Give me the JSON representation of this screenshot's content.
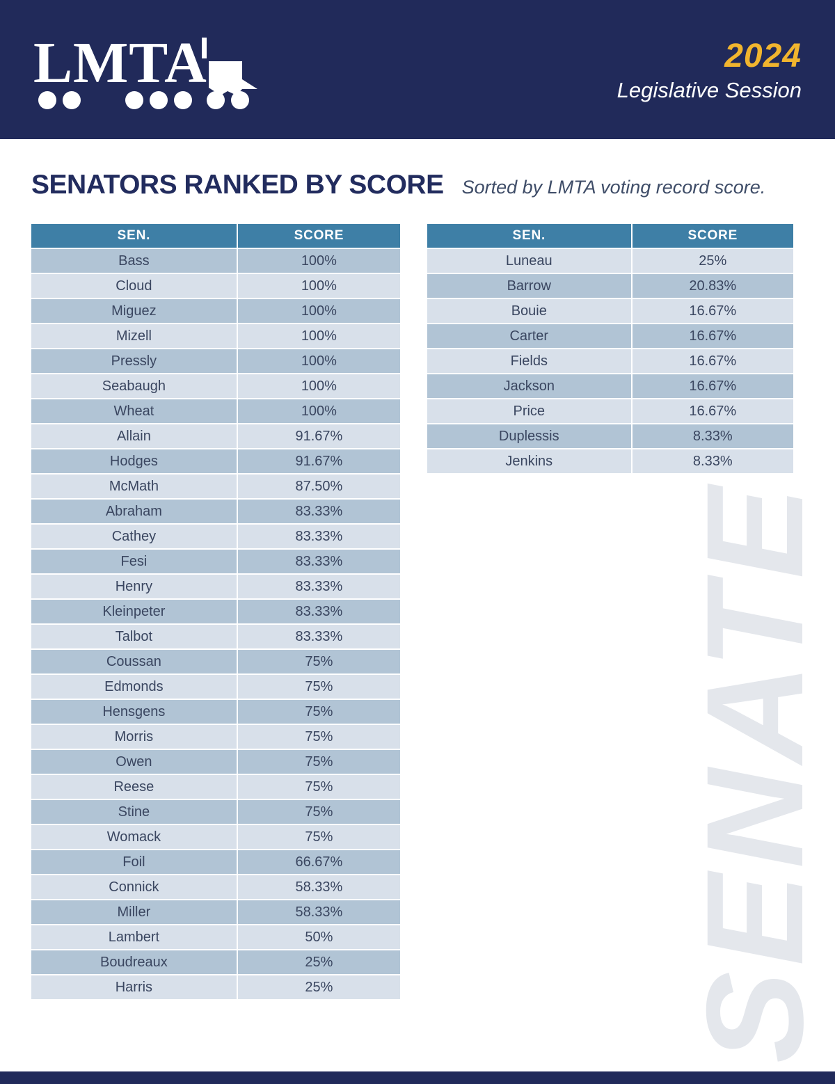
{
  "header": {
    "logo_text": "LMTA",
    "year": "2024",
    "session": "Legislative Session"
  },
  "page": {
    "title": "SENATORS RANKED BY SCORE",
    "subtitle": "Sorted by LMTA voting record score.",
    "watermark": "SENATE"
  },
  "tables": {
    "columns": [
      "SEN.",
      "SCORE"
    ],
    "left": {
      "rows": [
        [
          "Bass",
          "100%"
        ],
        [
          "Cloud",
          "100%"
        ],
        [
          "Miguez",
          "100%"
        ],
        [
          "Mizell",
          "100%"
        ],
        [
          "Pressly",
          "100%"
        ],
        [
          "Seabaugh",
          "100%"
        ],
        [
          "Wheat",
          "100%"
        ],
        [
          "Allain",
          "91.67%"
        ],
        [
          "Hodges",
          "91.67%"
        ],
        [
          "McMath",
          "87.50%"
        ],
        [
          "Abraham",
          "83.33%"
        ],
        [
          "Cathey",
          "83.33%"
        ],
        [
          "Fesi",
          "83.33%"
        ],
        [
          "Henry",
          "83.33%"
        ],
        [
          "Kleinpeter",
          "83.33%"
        ],
        [
          "Talbot",
          "83.33%"
        ],
        [
          "Coussan",
          "75%"
        ],
        [
          "Edmonds",
          "75%"
        ],
        [
          "Hensgens",
          "75%"
        ],
        [
          "Morris",
          "75%"
        ],
        [
          "Owen",
          "75%"
        ],
        [
          "Reese",
          "75%"
        ],
        [
          "Stine",
          "75%"
        ],
        [
          "Womack",
          "75%"
        ],
        [
          "Foil",
          "66.67%"
        ],
        [
          "Connick",
          "58.33%"
        ],
        [
          "Miller",
          "58.33%"
        ],
        [
          "Lambert",
          "50%"
        ],
        [
          "Boudreaux",
          "25%"
        ],
        [
          "Harris",
          "25%"
        ]
      ]
    },
    "right": {
      "rows": [
        [
          "Luneau",
          "25%"
        ],
        [
          "Barrow",
          "20.83%"
        ],
        [
          "Bouie",
          "16.67%"
        ],
        [
          "Carter",
          "16.67%"
        ],
        [
          "Fields",
          "16.67%"
        ],
        [
          "Jackson",
          "16.67%"
        ],
        [
          "Price",
          "16.67%"
        ],
        [
          "Duplessis",
          "8.33%"
        ],
        [
          "Jenkins",
          "8.33%"
        ]
      ]
    }
  }
}
